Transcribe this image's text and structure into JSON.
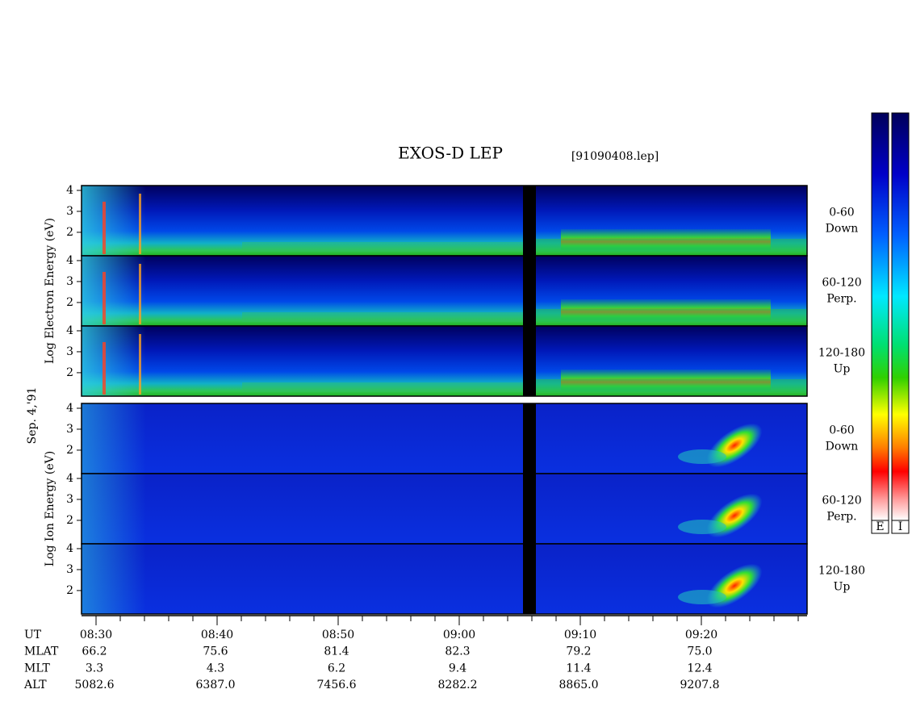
{
  "chart_data": {
    "type": "spectrogram",
    "title": "EXOS-D LEP",
    "subtitle": "[91090408.lep]",
    "date_label": "Sep. 4,'91",
    "ylim": [
      0.88,
      4.23
    ],
    "yticks": [
      2,
      3,
      4
    ],
    "groups": [
      {
        "ylabel": "Log Electron Energy (eV)",
        "colorbar_label": "E",
        "panels": [
          {
            "lines": [
              "0-60",
              "Down"
            ]
          },
          {
            "lines": [
              "60-120",
              "Perp."
            ]
          },
          {
            "lines": [
              "120-180",
              "Up"
            ]
          }
        ]
      },
      {
        "ylabel": "Log Ion Energy (eV)",
        "colorbar_label": "I",
        "panels": [
          {
            "lines": [
              "0-60",
              "Down"
            ]
          },
          {
            "lines": [
              "60-120",
              "Perp."
            ]
          },
          {
            "lines": [
              "120-180",
              "Up"
            ]
          }
        ]
      }
    ],
    "x_rows": [
      {
        "label": "UT",
        "values": [
          "08:30",
          "08:40",
          "08:50",
          "09:00",
          "09:10",
          "09:20"
        ]
      },
      {
        "label": "MLAT",
        "values": [
          "66.2",
          "75.6",
          "81.4",
          "82.3",
          "79.2",
          "75.0"
        ]
      },
      {
        "label": "MLT",
        "values": [
          "3.3",
          "4.3",
          "6.2",
          "9.4",
          "11.4",
          "12.4"
        ]
      },
      {
        "label": "ALT",
        "values": [
          "5082.6",
          "6387.0",
          "7456.6",
          "8282.2",
          "8865.0",
          "9207.8"
        ]
      }
    ]
  }
}
